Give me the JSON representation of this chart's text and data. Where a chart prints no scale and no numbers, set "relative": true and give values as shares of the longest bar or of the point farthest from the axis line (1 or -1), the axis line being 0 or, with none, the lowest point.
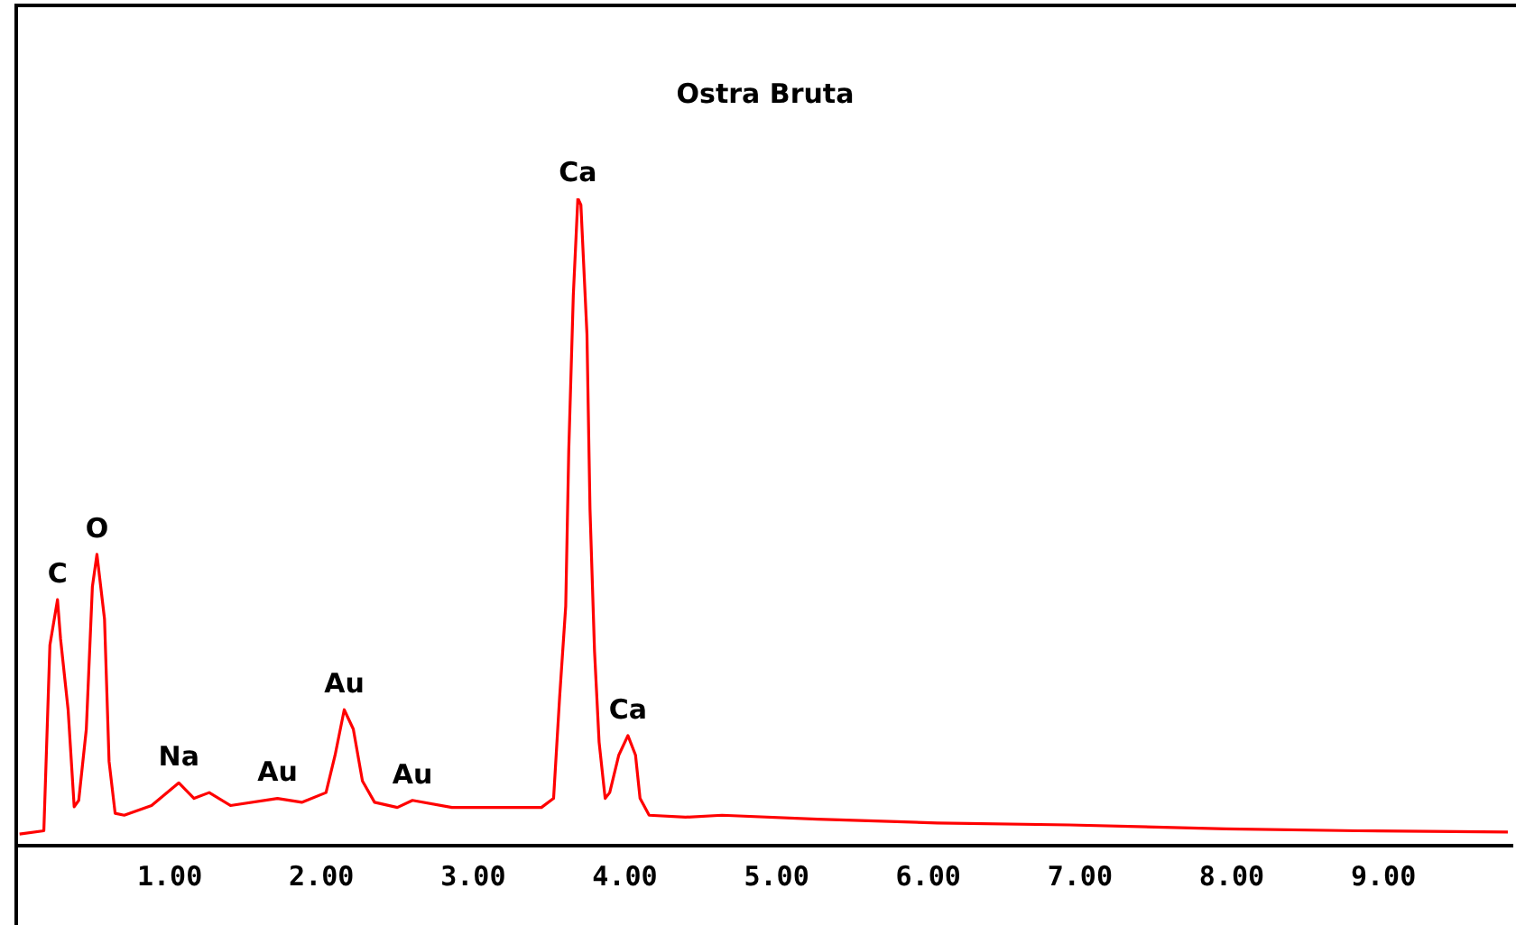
{
  "chart_data": {
    "type": "line",
    "title": "Ostra Bruta",
    "relative": true,
    "legend": false,
    "grid": false,
    "marker": "none",
    "line_style": "solid",
    "xlim": [
      0,
      9.85
    ],
    "xticks": [
      {
        "value": 1,
        "label": "1.00"
      },
      {
        "value": 2,
        "label": "2.00"
      },
      {
        "value": 3,
        "label": "3.00"
      },
      {
        "value": 4,
        "label": "4.00"
      },
      {
        "value": 5,
        "label": "5.00"
      },
      {
        "value": 6,
        "label": "6.00"
      },
      {
        "value": 7,
        "label": "7.00"
      },
      {
        "value": 8,
        "label": "8.00"
      },
      {
        "value": 9,
        "label": "9.00"
      }
    ],
    "x": [
      0.01,
      0.17,
      0.21,
      0.26,
      0.28,
      0.33,
      0.37,
      0.4,
      0.45,
      0.49,
      0.52,
      0.57,
      0.6,
      0.64,
      0.7,
      0.88,
      1.06,
      1.16,
      1.26,
      1.4,
      1.71,
      1.87,
      2.03,
      2.09,
      2.15,
      2.21,
      2.27,
      2.35,
      2.5,
      2.6,
      2.86,
      3.45,
      3.53,
      3.57,
      3.61,
      3.63,
      3.66,
      3.69,
      3.71,
      3.75,
      3.77,
      3.8,
      3.83,
      3.87,
      3.9,
      3.96,
      4.02,
      4.07,
      4.1,
      4.16,
      4.4,
      4.64,
      5.27,
      6.06,
      6.93,
      7.96,
      8.83,
      9.82
    ],
    "series": [
      {
        "color": "#ff0000",
        "values": [
          0.018,
          0.023,
          0.31,
          0.38,
          0.32,
          0.21,
          0.06,
          0.07,
          0.18,
          0.4,
          0.45,
          0.35,
          0.13,
          0.05,
          0.047,
          0.062,
          0.097,
          0.073,
          0.082,
          0.062,
          0.073,
          0.067,
          0.082,
          0.14,
          0.21,
          0.18,
          0.1,
          0.067,
          0.059,
          0.07,
          0.059,
          0.059,
          0.073,
          0.23,
          0.37,
          0.61,
          0.85,
          1,
          0.99,
          0.79,
          0.52,
          0.3,
          0.16,
          0.073,
          0.082,
          0.14,
          0.17,
          0.14,
          0.073,
          0.047,
          0.044,
          0.047,
          0.041,
          0.035,
          0.032,
          0.026,
          0.023,
          0.021
        ]
      }
    ],
    "annotations": [
      {
        "text": "C",
        "x": 0.26,
        "y": 0.38
      },
      {
        "text": "O",
        "x": 0.52,
        "y": 0.45
      },
      {
        "text": "Na",
        "x": 1.06,
        "y": 0.097
      },
      {
        "text": "Au",
        "x": 1.71,
        "y": 0.073
      },
      {
        "text": "Au",
        "x": 2.15,
        "y": 0.21
      },
      {
        "text": "Au",
        "x": 2.6,
        "y": 0.07
      },
      {
        "text": "Ca",
        "x": 3.69,
        "y": 1
      },
      {
        "text": "Ca",
        "x": 4.02,
        "y": 0.17
      }
    ]
  }
}
